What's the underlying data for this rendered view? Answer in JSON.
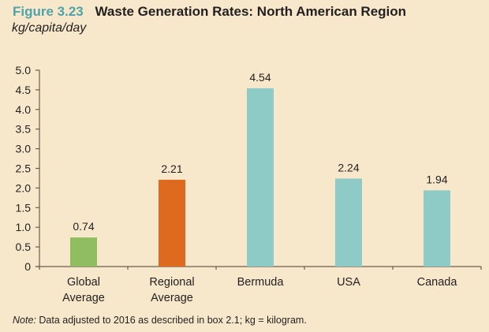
{
  "figure": {
    "number": "Figure 3.23",
    "title": "Waste Generation Rates: North American Region",
    "subtitle": "kg/capita/day"
  },
  "note": {
    "label": "Note:",
    "text": " Data adjusted to 2016 as described in box 2.1; kg = kilogram."
  },
  "colors": {
    "global": "#8fbd5f",
    "regional": "#de6a1f",
    "country": "#8ecbc7",
    "axis": "#6b5d4f"
  },
  "chart_data": {
    "type": "bar",
    "title": "Waste Generation Rates: North American Region",
    "subtitle": "kg/capita/day",
    "xlabel": "",
    "ylabel": "kg/capita/day",
    "categories": [
      [
        "Global",
        "Average"
      ],
      [
        "Regional",
        "Average"
      ],
      [
        "Bermuda"
      ],
      [
        "USA"
      ],
      [
        "Canada"
      ]
    ],
    "values": [
      0.74,
      2.21,
      4.54,
      2.24,
      1.94
    ],
    "data_labels": [
      "0.74",
      "2.21",
      "4.54",
      "2.24",
      "1.94"
    ],
    "bar_color_keys": [
      "global",
      "regional",
      "country",
      "country",
      "country"
    ],
    "ylim": [
      0,
      5.0
    ],
    "yticks": [
      0,
      0.5,
      1.0,
      1.5,
      2.0,
      2.5,
      3.0,
      3.5,
      4.0,
      4.5,
      5.0
    ],
    "ytick_labels": [
      "0",
      "0.5",
      "1.0",
      "1.5",
      "2.0",
      "2.5",
      "3.0",
      "3.5",
      "4.0",
      "4.5",
      "5.0"
    ],
    "grid": false,
    "legend": "none"
  }
}
